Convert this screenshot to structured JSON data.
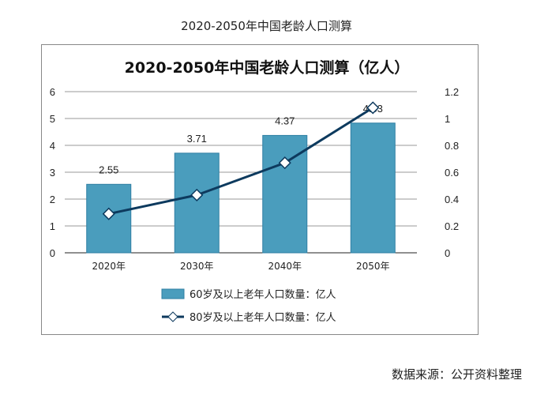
{
  "outer_title": "2020-2050年中国老龄人口测算",
  "source": "数据来源：公开资料整理",
  "chart_data": {
    "type": "bar+line",
    "title": "2020-2050年中国老龄人口测算（亿人）",
    "categories": [
      "2020年",
      "2030年",
      "2040年",
      "2050年"
    ],
    "series": [
      {
        "name": "60岁及以上老年人口数量：亿人",
        "type": "bar",
        "axis": "left",
        "values": [
          2.55,
          3.71,
          4.37,
          4.83
        ],
        "labels": [
          "2.55",
          "3.71",
          "4.37",
          "4.83"
        ],
        "color": "#4a9dbd"
      },
      {
        "name": "80岁及以上老年人口数量：亿人",
        "type": "line",
        "axis": "right",
        "values": [
          0.29,
          0.43,
          0.67,
          1.08
        ],
        "color": "#0d3a5e"
      }
    ],
    "left_axis": {
      "ylim": [
        0,
        6
      ],
      "ticks": [
        "0",
        "1",
        "2",
        "3",
        "4",
        "5",
        "6"
      ]
    },
    "right_axis": {
      "ylim": [
        0,
        1.2
      ],
      "ticks": [
        "0",
        "0.2",
        "0.4",
        "0.6",
        "0.8",
        "1",
        "1.2"
      ]
    },
    "grid": true,
    "legend": "bottom"
  }
}
